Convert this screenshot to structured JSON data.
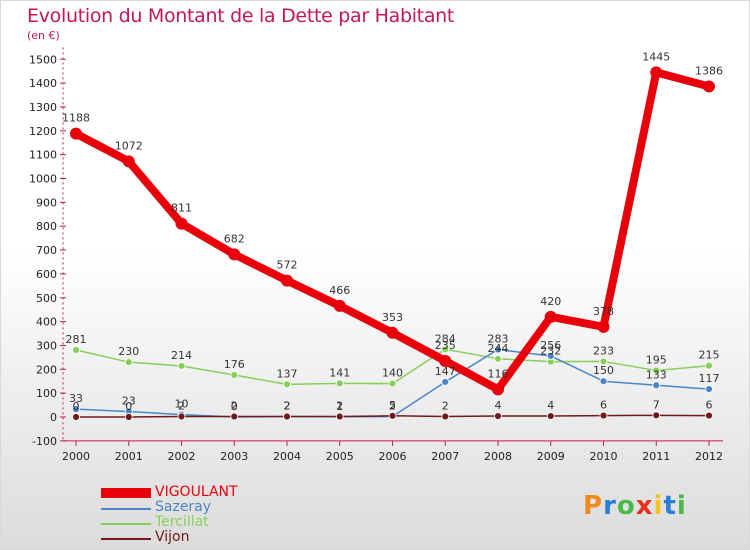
{
  "header": {
    "title": "Evolution du Montant de la Dette par Habitant",
    "unit": "(en €)"
  },
  "logo": {
    "text": "Proxiti"
  },
  "chart_data": {
    "type": "line",
    "title": "Evolution du Montant de la Dette par Habitant",
    "ylabel": "(en €)",
    "xlabel": "",
    "x": [
      "2000",
      "2001",
      "2002",
      "2003",
      "2004",
      "2005",
      "2006",
      "2007",
      "2008",
      "2009",
      "2010",
      "2011",
      "2012"
    ],
    "yticks": [
      -100,
      0,
      100,
      200,
      300,
      400,
      500,
      600,
      700,
      800,
      900,
      1000,
      1100,
      1200,
      1300,
      1400,
      1500
    ],
    "ylim": [
      -100,
      1550
    ],
    "grid": false,
    "legend_position": "bottom-left",
    "series": [
      {
        "name": "VIGOULANT",
        "color": "#e8000b",
        "values": [
          1188,
          1072,
          811,
          682,
          572,
          466,
          353,
          235,
          116,
          420,
          378,
          1445,
          1386
        ]
      },
      {
        "name": "Sazeray",
        "color": "#4a86c8",
        "values": [
          33,
          23,
          10,
          0,
          2,
          1,
          2,
          147,
          283,
          256,
          150,
          133,
          117
        ]
      },
      {
        "name": "Tercillat",
        "color": "#86d05a",
        "values": [
          281,
          230,
          214,
          176,
          137,
          141,
          140,
          284,
          244,
          232,
          233,
          195,
          215
        ]
      },
      {
        "name": "Vijon",
        "color": "#6e1a1a",
        "values": [
          0,
          0,
          2,
          2,
          2,
          2,
          5,
          2,
          4,
          4,
          6,
          7,
          6
        ]
      }
    ]
  }
}
